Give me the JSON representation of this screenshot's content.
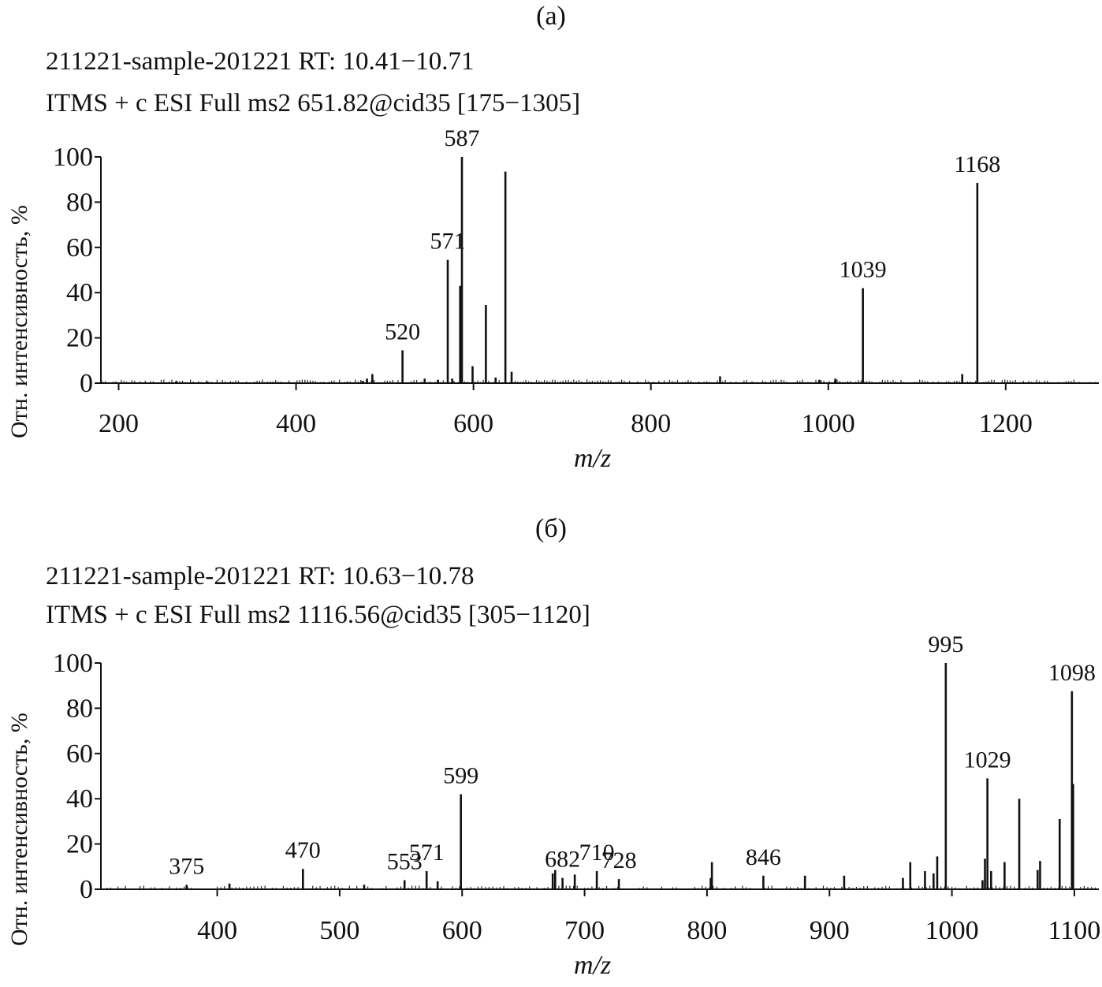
{
  "chart_data": [
    {
      "type": "bar",
      "panel_label": "(a)",
      "header_line1": "211221-sample-201221  RT: 10.41−10.71",
      "header_line2": "ITMS + c ESI Full ms2 651.82@cid35 [175−1305]",
      "xlabel": "m/z",
      "ylabel": "Отн. интенсивность, %",
      "xlim": [
        180,
        1305
      ],
      "ylim": [
        0,
        100
      ],
      "xticks": [
        200,
        400,
        600,
        800,
        1000,
        1200
      ],
      "yticks": [
        0,
        20,
        40,
        60,
        80,
        100
      ],
      "peaks": [
        {
          "mz": 265,
          "intensity": 1
        },
        {
          "mz": 300,
          "intensity": 0.7
        },
        {
          "mz": 475,
          "intensity": 1
        },
        {
          "mz": 480,
          "intensity": 2
        },
        {
          "mz": 486,
          "intensity": 4
        },
        {
          "mz": 520,
          "intensity": 14.5
        },
        {
          "mz": 545,
          "intensity": 2
        },
        {
          "mz": 560,
          "intensity": 1.5
        },
        {
          "mz": 571,
          "intensity": 54.5
        },
        {
          "mz": 576,
          "intensity": 2
        },
        {
          "mz": 585,
          "intensity": 43
        },
        {
          "mz": 587,
          "intensity": 100
        },
        {
          "mz": 599,
          "intensity": 7.5
        },
        {
          "mz": 614,
          "intensity": 34.5
        },
        {
          "mz": 625,
          "intensity": 2.5
        },
        {
          "mz": 636,
          "intensity": 93.5
        },
        {
          "mz": 643,
          "intensity": 5
        },
        {
          "mz": 878,
          "intensity": 3
        },
        {
          "mz": 990,
          "intensity": 1.5
        },
        {
          "mz": 1008,
          "intensity": 2
        },
        {
          "mz": 1039,
          "intensity": 42
        },
        {
          "mz": 1151,
          "intensity": 4
        },
        {
          "mz": 1168,
          "intensity": 88.5
        }
      ],
      "labels": [
        {
          "mz": 520,
          "text": "520"
        },
        {
          "mz": 571,
          "text": "571"
        },
        {
          "mz": 587,
          "text": "587"
        },
        {
          "mz": 1039,
          "text": "1039"
        },
        {
          "mz": 1168,
          "text": "1168"
        }
      ]
    },
    {
      "type": "bar",
      "panel_label": "(б)",
      "header_line1": "211221-sample-201221  RT: 10.63−10.78",
      "header_line2": "ITMS + c ESI Full ms2 1116.56@cid35 [305−1120]",
      "xlabel": "m/z",
      "ylabel": "Отн. интенсивность, %",
      "xlim": [
        305,
        1120
      ],
      "ylim": [
        0,
        100
      ],
      "xticks": [
        400,
        500,
        600,
        700,
        800,
        900,
        1000,
        1100
      ],
      "yticks": [
        0,
        20,
        40,
        60,
        80,
        100
      ],
      "peaks": [
        {
          "mz": 375,
          "intensity": 2
        },
        {
          "mz": 410,
          "intensity": 2.5
        },
        {
          "mz": 470,
          "intensity": 9
        },
        {
          "mz": 520,
          "intensity": 2
        },
        {
          "mz": 553,
          "intensity": 4
        },
        {
          "mz": 571,
          "intensity": 8
        },
        {
          "mz": 580,
          "intensity": 3.5
        },
        {
          "mz": 599,
          "intensity": 42
        },
        {
          "mz": 674,
          "intensity": 7
        },
        {
          "mz": 676,
          "intensity": 8.5
        },
        {
          "mz": 682,
          "intensity": 5
        },
        {
          "mz": 692,
          "intensity": 6.5
        },
        {
          "mz": 710,
          "intensity": 8
        },
        {
          "mz": 728,
          "intensity": 4.5
        },
        {
          "mz": 803,
          "intensity": 5
        },
        {
          "mz": 804,
          "intensity": 12
        },
        {
          "mz": 846,
          "intensity": 6
        },
        {
          "mz": 880,
          "intensity": 6
        },
        {
          "mz": 912,
          "intensity": 6
        },
        {
          "mz": 960,
          "intensity": 5
        },
        {
          "mz": 966,
          "intensity": 12
        },
        {
          "mz": 978,
          "intensity": 8
        },
        {
          "mz": 985,
          "intensity": 7
        },
        {
          "mz": 988,
          "intensity": 14.5
        },
        {
          "mz": 995,
          "intensity": 100
        },
        {
          "mz": 1025,
          "intensity": 4
        },
        {
          "mz": 1027,
          "intensity": 13.5
        },
        {
          "mz": 1029,
          "intensity": 49
        },
        {
          "mz": 1032,
          "intensity": 8
        },
        {
          "mz": 1043,
          "intensity": 12
        },
        {
          "mz": 1055,
          "intensity": 40
        },
        {
          "mz": 1070,
          "intensity": 8.5
        },
        {
          "mz": 1072,
          "intensity": 12.5
        },
        {
          "mz": 1088,
          "intensity": 31
        },
        {
          "mz": 1098,
          "intensity": 87.5
        },
        {
          "mz": 1099,
          "intensity": 46.5
        }
      ],
      "labels": [
        {
          "mz": 375,
          "text": "375"
        },
        {
          "mz": 470,
          "text": "470"
        },
        {
          "mz": 553,
          "text": "553"
        },
        {
          "mz": 571,
          "text": "571"
        },
        {
          "mz": 599,
          "text": "599"
        },
        {
          "mz": 682,
          "text": "682"
        },
        {
          "mz": 710,
          "text": "710"
        },
        {
          "mz": 728,
          "text": "728"
        },
        {
          "mz": 846,
          "text": "846"
        },
        {
          "mz": 995,
          "text": "995"
        },
        {
          "mz": 1029,
          "text": "1029"
        },
        {
          "mz": 1098,
          "text": "1098"
        }
      ]
    }
  ]
}
